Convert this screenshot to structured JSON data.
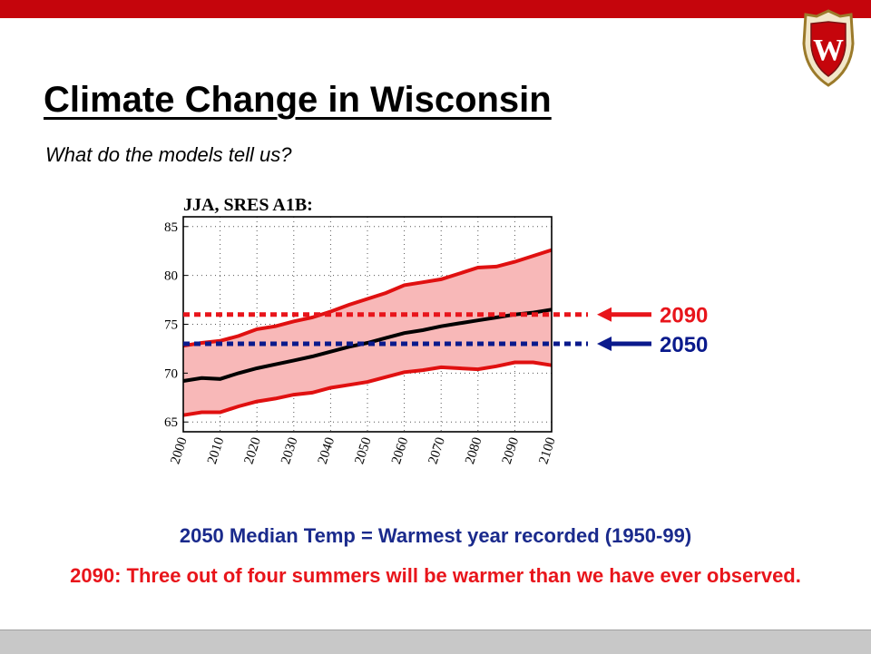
{
  "slide": {
    "title": "Climate Change in Wisconsin",
    "subtitle": "What do the models tell us?",
    "caption_1": "2050 Median Temp = Warmest year recorded (1950-99)",
    "caption_2": "2090:  Three out of four summers will be warmer than we have ever observed.",
    "logo_letter": "W"
  },
  "colors": {
    "brand_red": "#c5050c",
    "caption_blue": "#1a2a8c",
    "caption_red": "#e8151b",
    "band_fill": "#f8b8b8",
    "band_edge": "#e01010",
    "median": "#000000",
    "marker_2090": "#e8151b",
    "marker_2050": "#0a1a8c"
  },
  "chart_data": {
    "type": "area",
    "title": "JJA, SRES A1B:",
    "xlim": [
      2000,
      2100
    ],
    "ylim": [
      64,
      86
    ],
    "x_ticks": [
      2000,
      2010,
      2020,
      2030,
      2040,
      2050,
      2060,
      2070,
      2080,
      2090,
      2100
    ],
    "y_ticks": [
      65,
      70,
      75,
      80,
      85
    ],
    "grid": true,
    "x": [
      2000,
      2005,
      2010,
      2015,
      2020,
      2025,
      2030,
      2035,
      2040,
      2045,
      2050,
      2055,
      2060,
      2065,
      2070,
      2075,
      2080,
      2085,
      2090,
      2095,
      2100
    ],
    "series": [
      {
        "values": [
          65.7,
          66.0,
          66.0,
          66.6,
          67.1,
          67.4,
          67.8,
          68.0,
          68.5,
          68.8,
          69.1,
          69.6,
          70.1,
          70.3,
          70.6,
          70.5,
          70.4,
          70.7,
          71.1,
          71.1,
          70.8
        ]
      },
      {
        "values": [
          72.8,
          73.1,
          73.3,
          73.8,
          74.5,
          74.8,
          75.3,
          75.7,
          76.3,
          77.0,
          77.6,
          78.2,
          79.0,
          79.3,
          79.6,
          80.2,
          80.8,
          80.9,
          81.4,
          82.0,
          82.6
        ]
      },
      {
        "values": [
          69.2,
          69.5,
          69.4,
          70.0,
          70.5,
          70.9,
          71.3,
          71.7,
          72.2,
          72.7,
          73.1,
          73.6,
          74.1,
          74.4,
          74.8,
          75.1,
          75.4,
          75.7,
          76.0,
          76.2,
          76.5
        ]
      }
    ],
    "reference_lines": [
      {
        "label": "2090",
        "y": 76.0
      },
      {
        "label": "2050",
        "y": 73.0
      }
    ]
  }
}
